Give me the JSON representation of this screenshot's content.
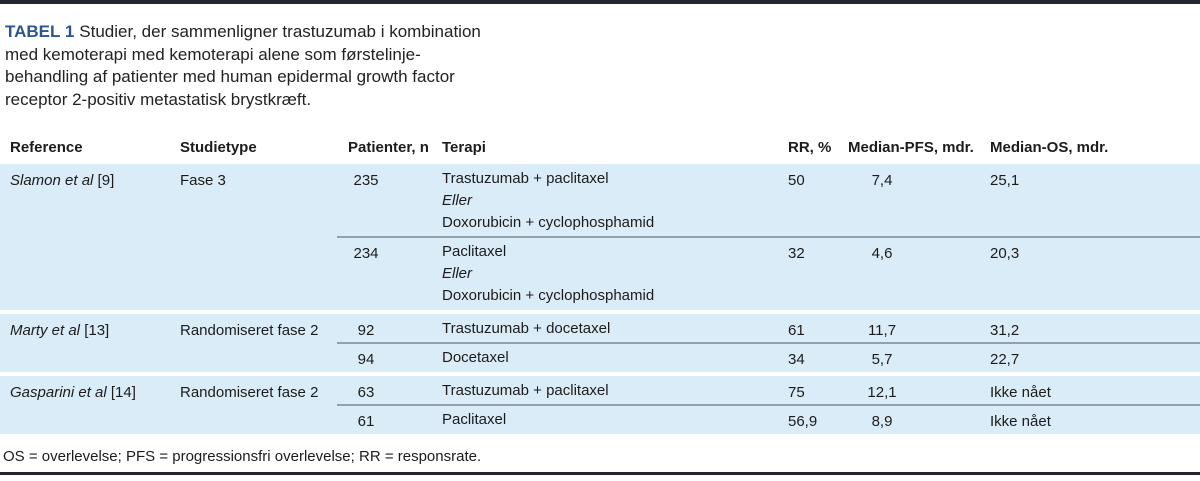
{
  "page": {
    "accent_blue": "#2a5694",
    "row_blue": "#d9ecf8",
    "rule_color": "#23262f",
    "divider_gray": "#94a0aa"
  },
  "title": {
    "label": "TABEL 1",
    "text": "Studier, der sammenligner trastuzumab i kombination\nmed kemoterapi med kemoterapi alene som førstelinje-\nbehandling af patienter med human epidermal growth factor\nreceptor 2-positiv metastatisk brystkræft."
  },
  "table": {
    "columns": [
      {
        "label": "Reference"
      },
      {
        "label": "Studietype"
      },
      {
        "label": "Patienter, n"
      },
      {
        "label": "Terapi"
      },
      {
        "label": "RR, %"
      },
      {
        "label": "Median-PFS, mdr."
      },
      {
        "label": "Median-OS, mdr."
      }
    ],
    "groups": [
      {
        "reference_italic": "Slamon et al",
        "reference_ref": "[9]",
        "studietype": "Fase 3",
        "rows": [
          {
            "n": "235",
            "therapy": [
              {
                "text": "Trastuzumab + paclitaxel",
                "italic": false
              },
              {
                "text": "Eller",
                "italic": true
              },
              {
                "text": "Doxorubicin + cyclophosphamid",
                "italic": false
              }
            ],
            "rr": "50",
            "pfs": "7,4",
            "os": "25,1"
          },
          {
            "n": "234",
            "therapy": [
              {
                "text": "Paclitaxel",
                "italic": false
              },
              {
                "text": "Eller",
                "italic": true
              },
              {
                "text": "Doxorubicin + cyclophosphamid",
                "italic": false
              }
            ],
            "rr": "32",
            "pfs": "4,6",
            "os": "20,3"
          }
        ]
      },
      {
        "reference_italic": "Marty et al",
        "reference_ref": "[13]",
        "studietype": "Randomiseret fase 2",
        "rows": [
          {
            "n": "92",
            "therapy": [
              {
                "text": "Trastuzumab + docetaxel",
                "italic": false
              }
            ],
            "rr": "61",
            "pfs": "11,7",
            "os": "31,2"
          },
          {
            "n": "94",
            "therapy": [
              {
                "text": "Docetaxel",
                "italic": false
              }
            ],
            "rr": "34",
            "pfs": "5,7",
            "os": "22,7"
          }
        ]
      },
      {
        "reference_italic": "Gasparini et al",
        "reference_ref": "[14]",
        "studietype": "Randomiseret fase 2",
        "rows": [
          {
            "n": "63",
            "therapy": [
              {
                "text": "Trastuzumab + paclitaxel",
                "italic": false
              }
            ],
            "rr": "75",
            "pfs": "12,1",
            "os": "Ikke nået"
          },
          {
            "n": "61",
            "therapy": [
              {
                "text": "Paclitaxel",
                "italic": false
              }
            ],
            "rr": "56,9",
            "pfs": "8,9",
            "os": "Ikke nået"
          }
        ]
      }
    ]
  },
  "footnote": "OS = overlevelse; PFS = progressionsfri overlevelse; RR = responsrate."
}
